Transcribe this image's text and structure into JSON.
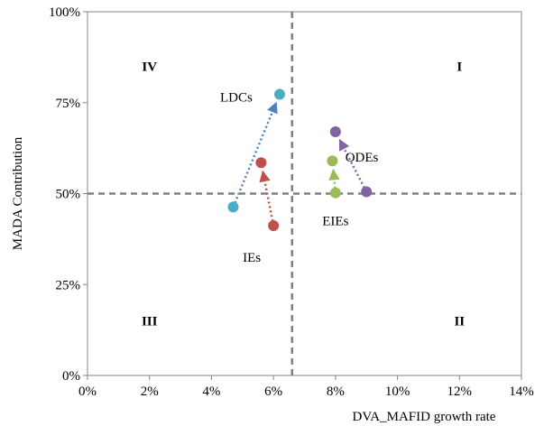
{
  "chart_data": {
    "type": "scatter",
    "title": "",
    "xlabel": "DVA_MAFID growth rate",
    "ylabel": "MADA Contribution",
    "xlim": [
      0,
      0.14
    ],
    "ylim": [
      0,
      1.0
    ],
    "x_ticks": [
      0,
      0.02,
      0.04,
      0.06,
      0.08,
      0.1,
      0.12,
      0.14
    ],
    "x_tick_labels": [
      "0%",
      "2%",
      "4%",
      "6%",
      "8%",
      "10%",
      "12%",
      "14%"
    ],
    "y_ticks": [
      0,
      0.25,
      0.5,
      0.75,
      1.0
    ],
    "y_tick_labels": [
      "0%",
      "25%",
      "50%",
      "75%",
      "100%"
    ],
    "grid": false,
    "reference_lines": {
      "x": 0.066,
      "y": 0.5,
      "style": "dashed",
      "color": "#808080"
    },
    "quadrant_labels": [
      {
        "text": "IV",
        "x": 0.02,
        "y": 0.85
      },
      {
        "text": "I",
        "x": 0.12,
        "y": 0.85
      },
      {
        "text": "III",
        "x": 0.02,
        "y": 0.15
      },
      {
        "text": "II",
        "x": 0.12,
        "y": 0.15
      }
    ],
    "series": [
      {
        "name": "LDCs",
        "color": "#4BACC6",
        "arrow_color": "#4F81BD",
        "from": {
          "x": 0.047,
          "y": 0.463
        },
        "to": {
          "x": 0.062,
          "y": 0.773
        },
        "label_pos": {
          "x": 0.048,
          "y": 0.765
        }
      },
      {
        "name": "IEs",
        "color": "#C0504D",
        "arrow_color": "#C0504D",
        "from": {
          "x": 0.06,
          "y": 0.412
        },
        "to": {
          "x": 0.056,
          "y": 0.585
        },
        "label_pos": {
          "x": 0.053,
          "y": 0.325
        }
      },
      {
        "name": "EIEs",
        "color": "#9BBB59",
        "arrow_color": "#9BBB59",
        "from": {
          "x": 0.08,
          "y": 0.502
        },
        "to": {
          "x": 0.079,
          "y": 0.59
        },
        "label_pos": {
          "x": 0.08,
          "y": 0.425
        }
      },
      {
        "name": "ODEs",
        "color": "#8064A2",
        "arrow_color": "#8064A2",
        "from": {
          "x": 0.09,
          "y": 0.505
        },
        "to": {
          "x": 0.08,
          "y": 0.67
        },
        "label_pos": {
          "x": 0.0885,
          "y": 0.6
        }
      }
    ]
  }
}
